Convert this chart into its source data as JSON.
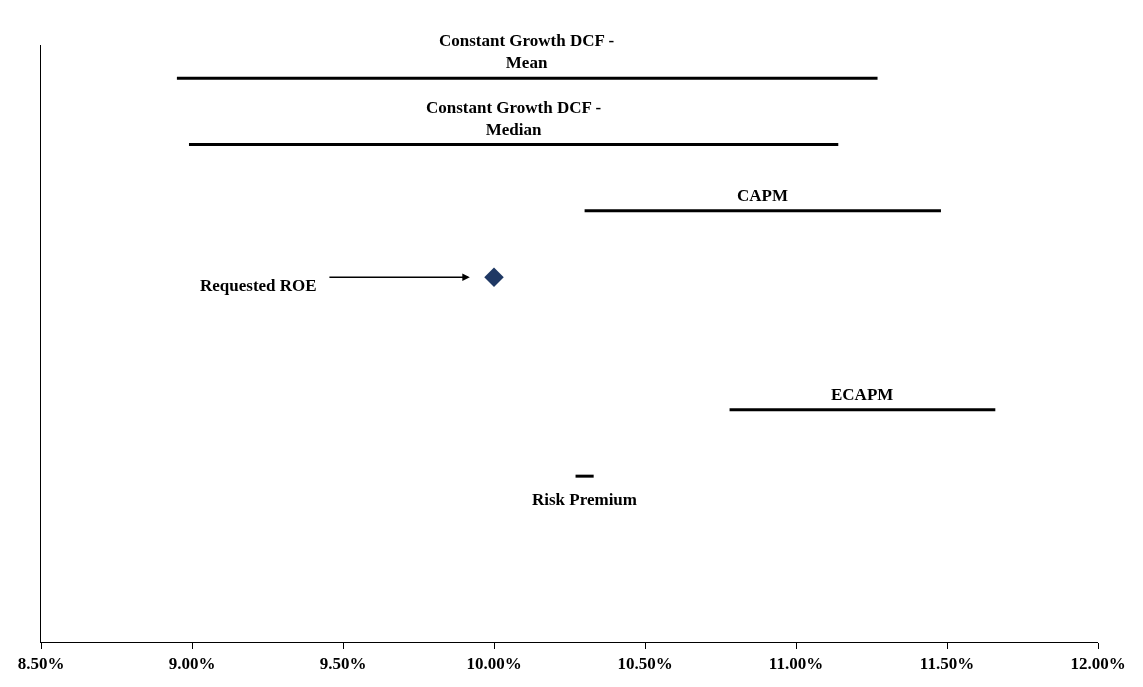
{
  "chart_data": {
    "type": "bar",
    "orientation": "horizontal",
    "tick_labels": "x",
    "categories": [
      "Constant Growth DCF - Mean",
      "Constant Growth DCF - Median",
      "CAPM",
      "Requested ROE",
      null,
      "ECAPM",
      "Risk Premium",
      null,
      null
    ],
    "series": [
      {
        "color": "#000000",
        "base": [
          8.95,
          8.99,
          10.3,
          null,
          null,
          10.78,
          10.27,
          null,
          null
        ],
        "values": [
          2.32,
          2.15,
          1.18,
          null,
          null,
          0.88,
          0.06,
          null,
          null
        ]
      },
      {
        "type": "scatter",
        "marker": "diamond",
        "color": "#1f3864",
        "values": [
          null,
          null,
          null,
          10.0,
          null,
          null,
          null,
          null,
          null
        ]
      }
    ],
    "xlim": [
      8.5,
      12.0
    ],
    "xticks": [
      {
        "value": 8.5,
        "label": "8.50%"
      },
      {
        "value": 9.0,
        "label": "9.00%"
      },
      {
        "value": 9.5,
        "label": "9.50%"
      },
      {
        "value": 10.0,
        "label": "10.00%"
      },
      {
        "value": 10.5,
        "label": "10.50%"
      },
      {
        "value": 11.0,
        "label": "11.00%"
      },
      {
        "value": 11.5,
        "label": "11.50%"
      },
      {
        "value": 12.0,
        "label": "12.00%"
      }
    ]
  }
}
